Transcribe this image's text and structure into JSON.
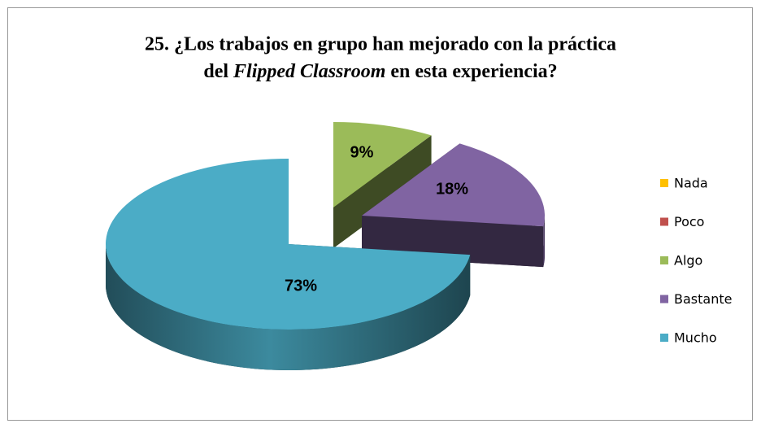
{
  "chart_data": {
    "type": "pie3d",
    "title": [
      "25. ¿Los trabajos en grupo han mejorado con la práctica",
      "del ",
      "Flipped Classroom",
      " en esta experiencia?"
    ],
    "categories": [
      "Nada",
      "Poco",
      "Algo",
      "Bastante",
      "Mucho"
    ],
    "values": [
      0,
      0,
      9,
      18,
      73
    ],
    "value_labels": [
      null,
      null,
      "9%",
      "18%",
      "73%"
    ],
    "colors": [
      "#ffc000",
      "#c0504d",
      "#9bbb59",
      "#8064a2",
      "#4bacc6"
    ],
    "legend": "right"
  }
}
